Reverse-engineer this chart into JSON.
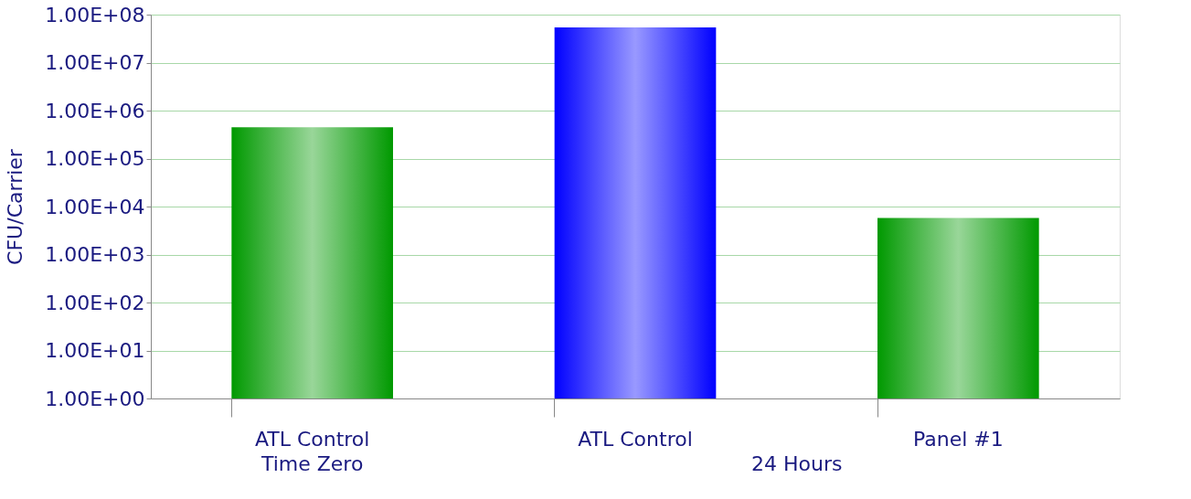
{
  "chart_data": {
    "type": "bar",
    "ylabel": "CFU/Carrier",
    "categories": [
      "ATL Control",
      "ATL Control",
      "Panel #1"
    ],
    "values": [
      450000,
      54000000,
      5800
    ],
    "colors": [
      "#009900",
      "#0000ff",
      "#009900"
    ],
    "log": true,
    "ylim": [
      1,
      100000000
    ],
    "yticks": [
      {
        "value": 1,
        "label": "1.00E+00"
      },
      {
        "value": 10,
        "label": "1.00E+01"
      },
      {
        "value": 100,
        "label": "1.00E+02"
      },
      {
        "value": 1000,
        "label": "1.00E+03"
      },
      {
        "value": 10000,
        "label": "1.00E+04"
      },
      {
        "value": 100000,
        "label": "1.00E+05"
      },
      {
        "value": 1000000,
        "label": "1.00E+06"
      },
      {
        "value": 10000000,
        "label": "1.00E+07"
      },
      {
        "value": 100000000,
        "label": "1.00E+08"
      }
    ],
    "grid": "y",
    "annotations": [
      "Time Zero",
      "24 Hours"
    ]
  }
}
